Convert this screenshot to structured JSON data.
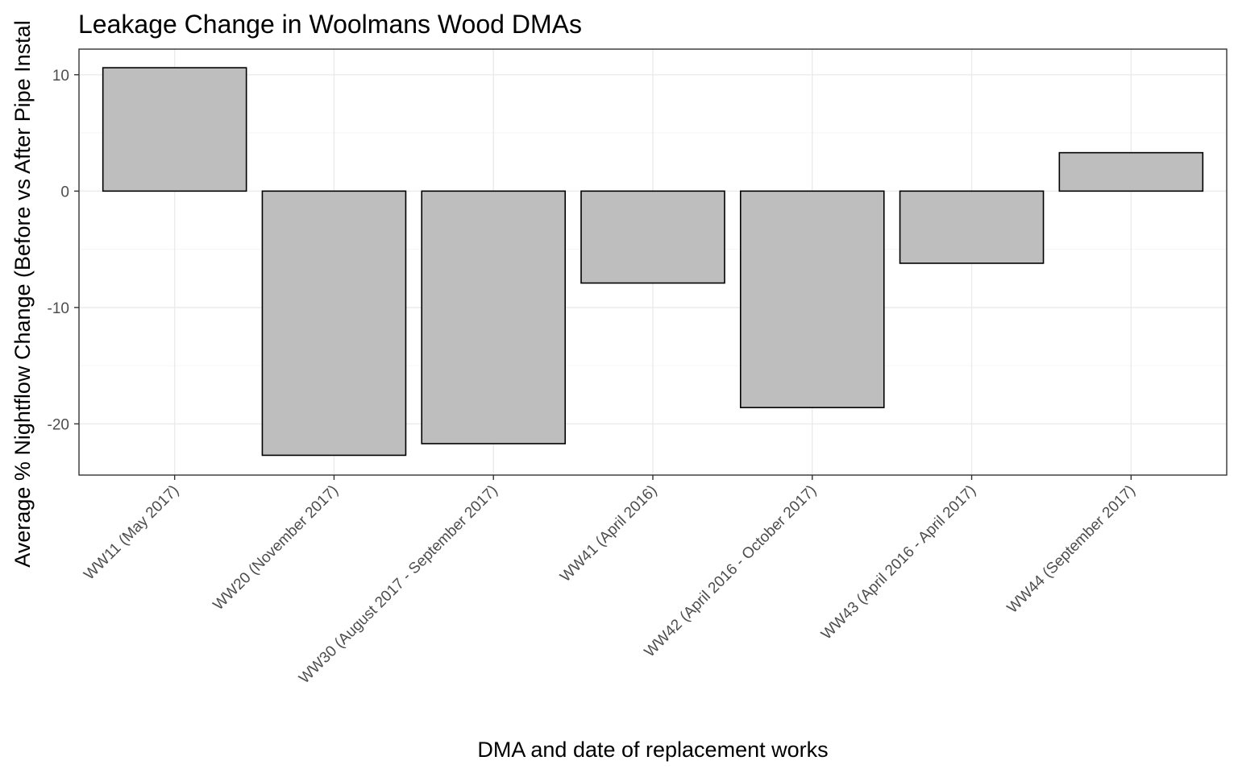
{
  "chart_data": {
    "type": "bar",
    "title": "Leakage Change in Woolmans Wood DMAs",
    "xlabel": "DMA and date of replacement works",
    "ylabel": "Average % Nightflow Change (Before vs After Pipe Instal",
    "categories": [
      "WW11 (May 2017)",
      "WW20 (November 2017)",
      "WW30 (August 2017 - September 2017)",
      "WW41 (April 2016)",
      "WW42 (April 2016 - October 2017)",
      "WW43 (April 2016 - April 2017)",
      "WW44 (September 2017)"
    ],
    "values": [
      10.6,
      -22.7,
      -21.7,
      -7.9,
      -18.6,
      -6.2,
      3.3
    ],
    "ylim": [
      -24.4,
      12.2
    ],
    "yticks": [
      -20,
      -10,
      0,
      10
    ],
    "ytick_labels": [
      "-20",
      "-10",
      "0",
      "10"
    ],
    "grid": true,
    "legend": "none",
    "colors": {
      "bar_fill": "#bebebe",
      "bar_stroke": "#000000",
      "panel_border": "#333333",
      "tick_text": "#4d4d4d"
    }
  }
}
